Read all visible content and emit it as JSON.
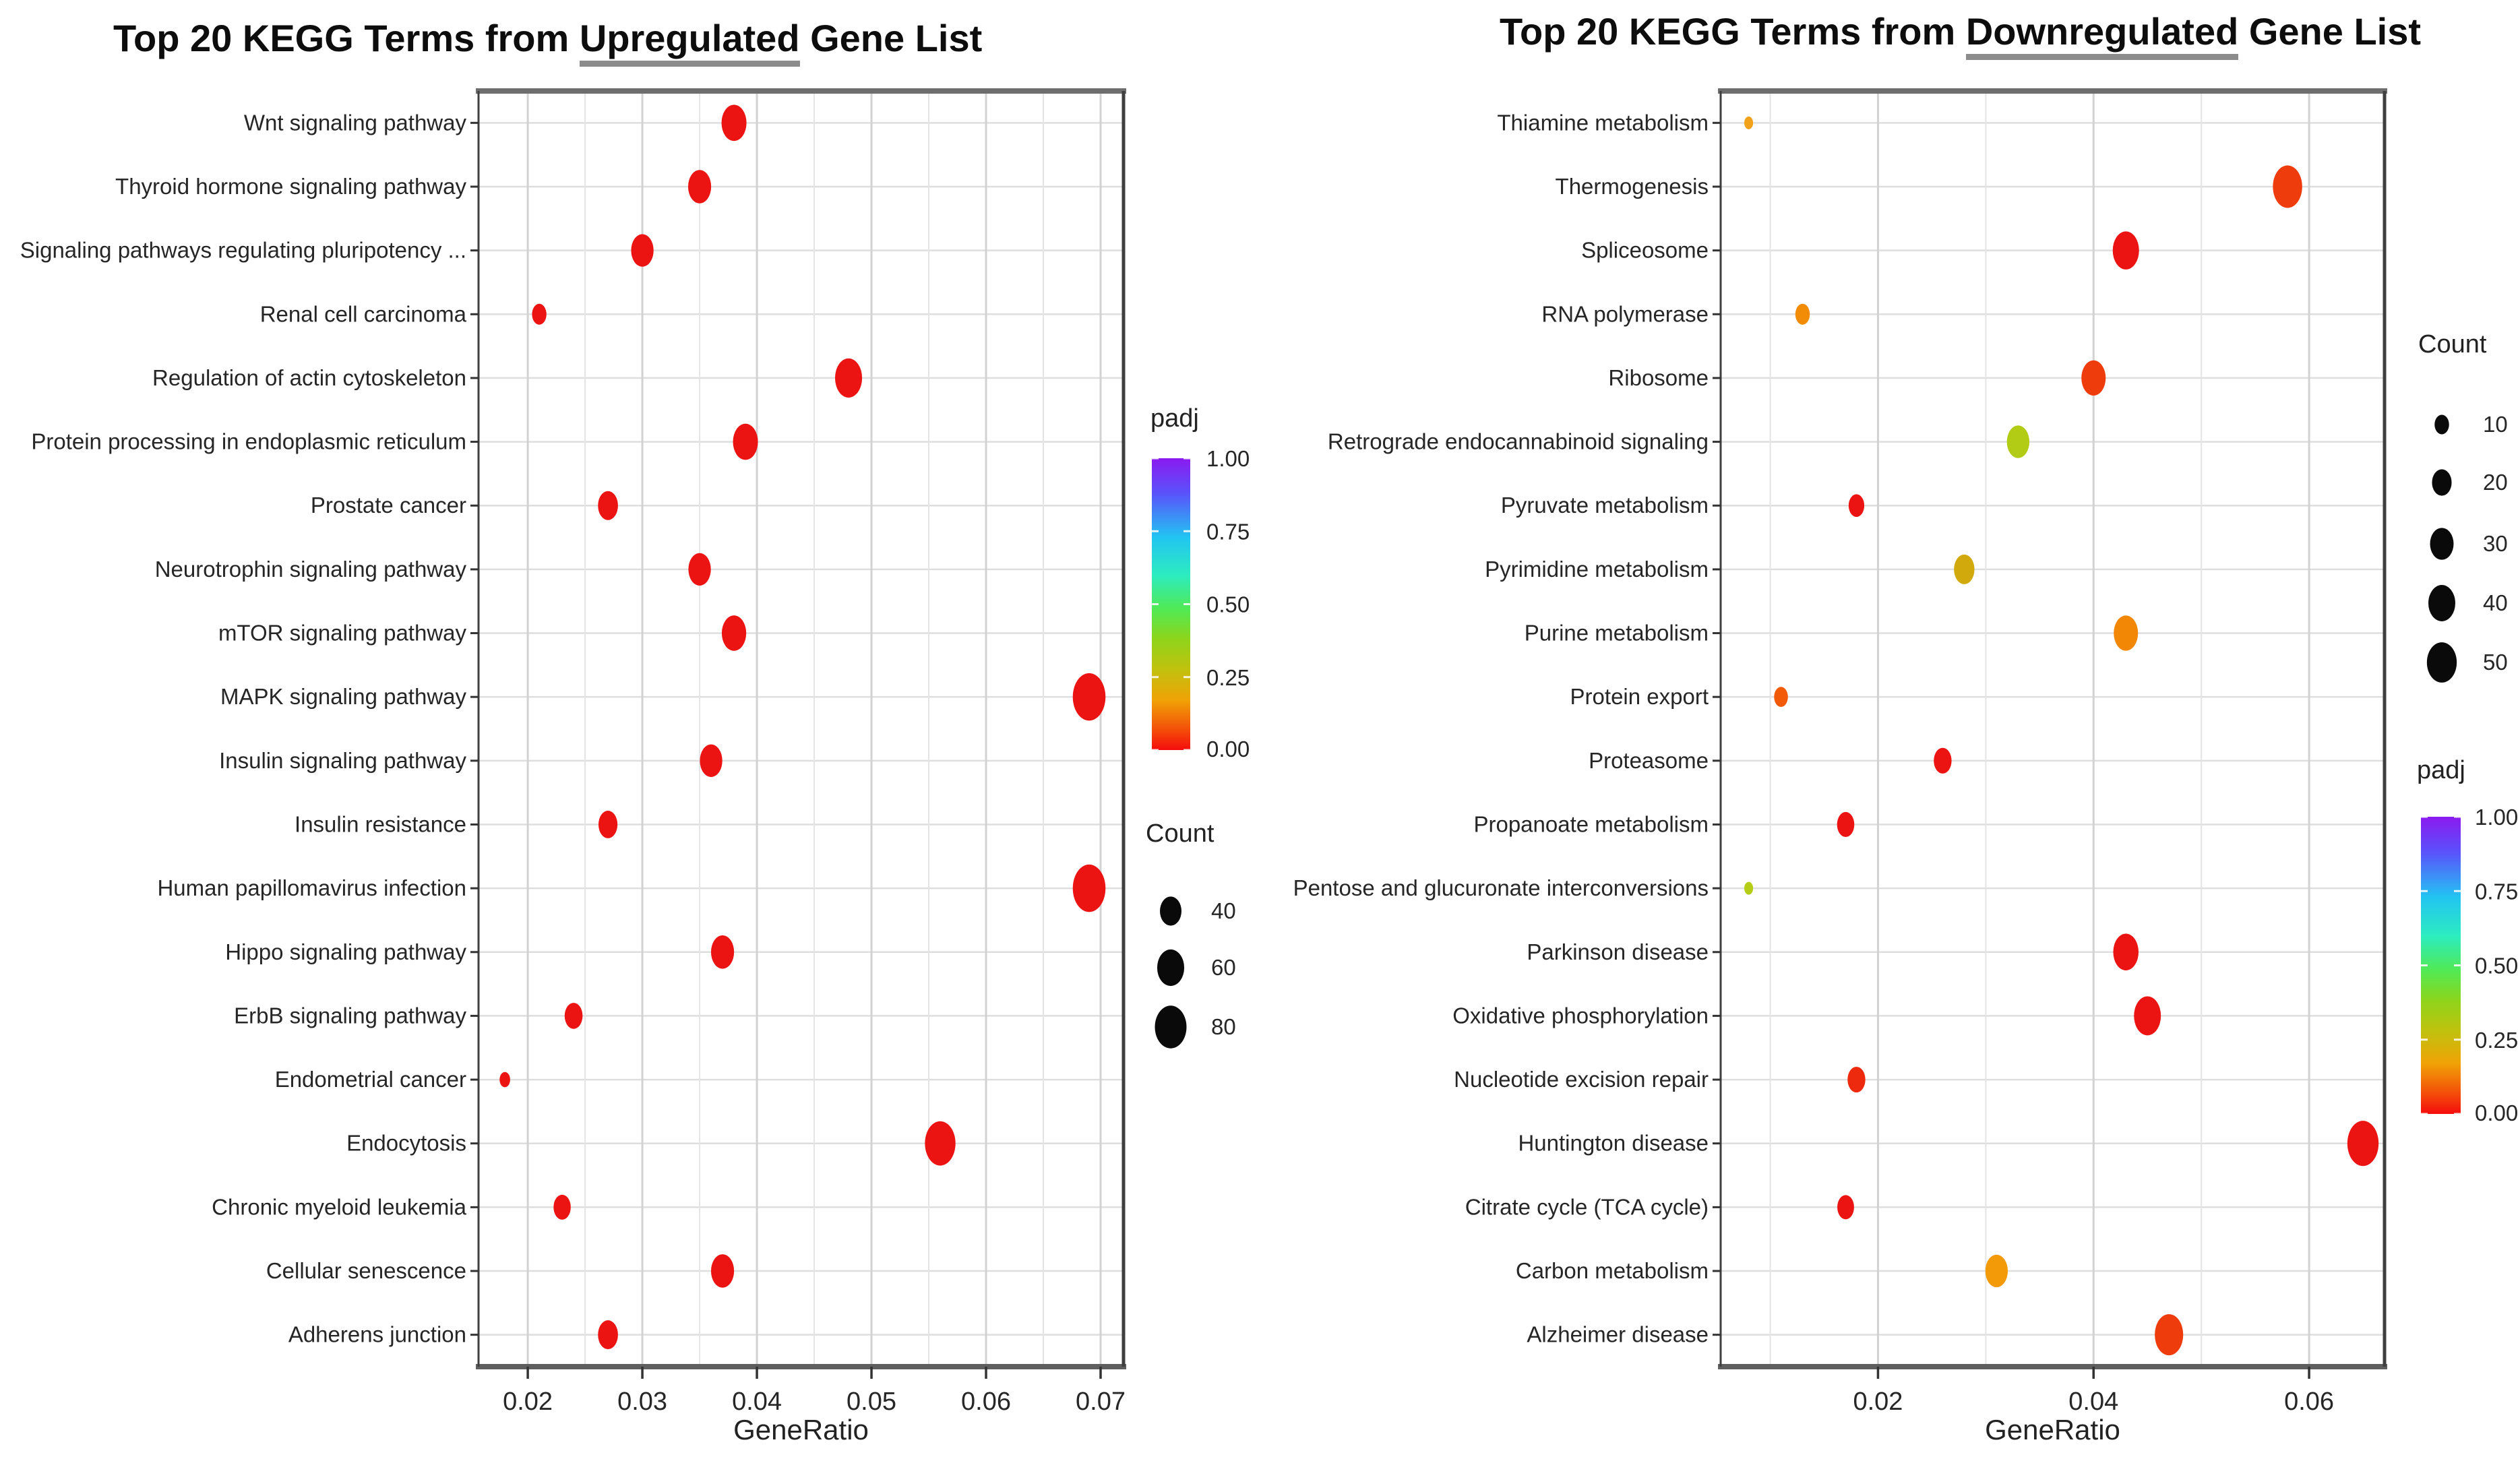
{
  "colors": {
    "dot_red": "#ec1313",
    "title_underline": "#8c8c8c",
    "grid_major": "#d2d2d2",
    "grid_minor": "#e4e4e4",
    "row_line": "#dedede",
    "padj_scale": [
      "#8b1af0",
      "#5a52fb",
      "#22c4f2",
      "#2cecc0",
      "#52e952",
      "#8ed41a",
      "#c0c20e",
      "#f0a206",
      "#f35708",
      "#f50d0d"
    ]
  },
  "chart_data": [
    {
      "type": "scatter",
      "panel": "upregulated",
      "title": {
        "prefix": "Top 20 KEGG Terms from ",
        "highlight": "Upregulated",
        "suffix": " Gene List"
      },
      "xlabel": "GeneRatio",
      "x_domain": [
        0.0157,
        0.072
      ],
      "x_minor_step": 0.005,
      "x_ticks": [
        "0.02",
        "0.03",
        "0.04",
        "0.05",
        "0.06",
        "0.07"
      ],
      "x_tick_values": [
        0.02,
        0.03,
        0.04,
        0.05,
        0.06,
        0.07
      ],
      "grid": true,
      "legend_padj": {
        "title": "padj",
        "ticks": [
          "1.00",
          "0.75",
          "0.50",
          "0.25",
          "0.00"
        ]
      },
      "legend_count": {
        "title": "Count",
        "items": [
          40,
          60,
          80
        ]
      },
      "points": [
        {
          "term": "Wnt signaling pathway",
          "gene_ratio": 0.038,
          "count": 52,
          "padj": 0.001,
          "color": "#ec1313"
        },
        {
          "term": "Thyroid hormone signaling pathway",
          "gene_ratio": 0.035,
          "count": 45,
          "padj": 0.001,
          "color": "#ec1313"
        },
        {
          "term": "Signaling pathways regulating pluripotency ...",
          "gene_ratio": 0.03,
          "count": 43,
          "padj": 0.001,
          "color": "#ec1313"
        },
        {
          "term": "Renal cell carcinoma",
          "gene_ratio": 0.021,
          "count": 20,
          "padj": 0.001,
          "color": "#ec1313"
        },
        {
          "term": "Regulation of actin cytoskeleton",
          "gene_ratio": 0.048,
          "count": 60,
          "padj": 0.001,
          "color": "#ec1313"
        },
        {
          "term": "Protein processing in endoplasmic reticulum",
          "gene_ratio": 0.039,
          "count": 52,
          "padj": 0.001,
          "color": "#ec1313"
        },
        {
          "term": "Prostate cancer",
          "gene_ratio": 0.027,
          "count": 35,
          "padj": 0.001,
          "color": "#ec1313"
        },
        {
          "term": "Neurotrophin signaling pathway",
          "gene_ratio": 0.035,
          "count": 43,
          "padj": 0.001,
          "color": "#ec1313"
        },
        {
          "term": "mTOR signaling pathway",
          "gene_ratio": 0.038,
          "count": 50,
          "padj": 0.001,
          "color": "#ec1313"
        },
        {
          "term": "MAPK signaling pathway",
          "gene_ratio": 0.069,
          "count": 85,
          "padj": 0.001,
          "color": "#ec1313"
        },
        {
          "term": "Insulin signaling pathway",
          "gene_ratio": 0.036,
          "count": 43,
          "padj": 0.001,
          "color": "#ec1313"
        },
        {
          "term": "Insulin resistance",
          "gene_ratio": 0.027,
          "count": 32,
          "padj": 0.001,
          "color": "#ec1313"
        },
        {
          "term": "Human papillomavirus infection",
          "gene_ratio": 0.069,
          "count": 85,
          "padj": 0.001,
          "color": "#ec1313"
        },
        {
          "term": "Hippo signaling pathway",
          "gene_ratio": 0.037,
          "count": 45,
          "padj": 0.001,
          "color": "#ec1313"
        },
        {
          "term": "ErbB signaling pathway",
          "gene_ratio": 0.024,
          "count": 29,
          "padj": 0.001,
          "color": "#ec1313"
        },
        {
          "term": "Endometrial cancer",
          "gene_ratio": 0.018,
          "count": 12,
          "padj": 0.001,
          "color": "#ec1313"
        },
        {
          "term": "Endocytosis",
          "gene_ratio": 0.056,
          "count": 75,
          "padj": 0.001,
          "color": "#ec1313"
        },
        {
          "term": "Chronic myeloid leukemia",
          "gene_ratio": 0.023,
          "count": 27,
          "padj": 0.001,
          "color": "#ec1313"
        },
        {
          "term": "Cellular senescence",
          "gene_ratio": 0.037,
          "count": 45,
          "padj": 0.001,
          "color": "#ec1313"
        },
        {
          "term": "Adherens junction",
          "gene_ratio": 0.027,
          "count": 35,
          "padj": 0.001,
          "color": "#ec1313"
        }
      ]
    },
    {
      "type": "scatter",
      "panel": "downregulated",
      "title": {
        "prefix": "Top 20 KEGG Terms from ",
        "highlight": "Downregulated",
        "suffix": " Gene List"
      },
      "xlabel": "GeneRatio",
      "x_domain": [
        0.0054,
        0.067
      ],
      "x_minor_step": 0.01,
      "x_ticks": [
        "0.02",
        "0.04",
        "0.06"
      ],
      "x_tick_values": [
        0.02,
        0.04,
        0.06
      ],
      "grid": true,
      "legend_count": {
        "title": "Count",
        "items": [
          10,
          20,
          30,
          40,
          50
        ]
      },
      "legend_padj": {
        "title": "padj",
        "ticks": [
          "1.00",
          "0.75",
          "0.50",
          "0.25",
          "0.00"
        ]
      },
      "points": [
        {
          "term": "Thiamine metabolism",
          "gene_ratio": 0.008,
          "count": 3,
          "padj": 0.11,
          "color": "#f2a21a"
        },
        {
          "term": "Thermogenesis",
          "gene_ratio": 0.058,
          "count": 48,
          "padj": 0.03,
          "color": "#ee3c0d"
        },
        {
          "term": "Spliceosome",
          "gene_ratio": 0.043,
          "count": 38,
          "padj": 0.005,
          "color": "#ec1313"
        },
        {
          "term": "RNA polymerase",
          "gene_ratio": 0.013,
          "count": 10,
          "padj": 0.09,
          "color": "#f28c07"
        },
        {
          "term": "Ribosome",
          "gene_ratio": 0.04,
          "count": 32,
          "padj": 0.03,
          "color": "#ee3c0d"
        },
        {
          "term": "Retrograde endocannabinoid signaling",
          "gene_ratio": 0.033,
          "count": 27,
          "padj": 0.21,
          "color": "#b2cb15"
        },
        {
          "term": "Pyruvate metabolism",
          "gene_ratio": 0.018,
          "count": 12,
          "padj": 0.005,
          "color": "#ec1313"
        },
        {
          "term": "Pyrimidine metabolism",
          "gene_ratio": 0.028,
          "count": 22,
          "padj": 0.16,
          "color": "#d2a90c"
        },
        {
          "term": "Purine metabolism",
          "gene_ratio": 0.043,
          "count": 32,
          "padj": 0.08,
          "color": "#f28705"
        },
        {
          "term": "Protein export",
          "gene_ratio": 0.011,
          "count": 9,
          "padj": 0.05,
          "color": "#f25a07"
        },
        {
          "term": "Proteasome",
          "gene_ratio": 0.026,
          "count": 16,
          "padj": 0.005,
          "color": "#ec1313"
        },
        {
          "term": "Propanoate metabolism",
          "gene_ratio": 0.017,
          "count": 15,
          "padj": 0.005,
          "color": "#ec1313"
        },
        {
          "term": "Pentose and glucuronate interconversions",
          "gene_ratio": 0.008,
          "count": 3,
          "padj": 0.22,
          "color": "#b6cd18"
        },
        {
          "term": "Parkinson disease",
          "gene_ratio": 0.043,
          "count": 35,
          "padj": 0.005,
          "color": "#ec1313"
        },
        {
          "term": "Oxidative phosphorylation",
          "gene_ratio": 0.045,
          "count": 40,
          "padj": 0.005,
          "color": "#ec1313"
        },
        {
          "term": "Nucleotide excision repair",
          "gene_ratio": 0.018,
          "count": 16,
          "padj": 0.02,
          "color": "#ee2a0e"
        },
        {
          "term": "Huntington disease",
          "gene_ratio": 0.065,
          "count": 55,
          "padj": 0.005,
          "color": "#ec1313"
        },
        {
          "term": "Citrate cycle (TCA cycle)",
          "gene_ratio": 0.017,
          "count": 14,
          "padj": 0.005,
          "color": "#ec1313"
        },
        {
          "term": "Carbon metabolism",
          "gene_ratio": 0.031,
          "count": 27,
          "padj": 0.1,
          "color": "#f29a07"
        },
        {
          "term": "Alzheimer disease",
          "gene_ratio": 0.047,
          "count": 45,
          "padj": 0.03,
          "color": "#ee3c0d"
        }
      ]
    }
  ]
}
